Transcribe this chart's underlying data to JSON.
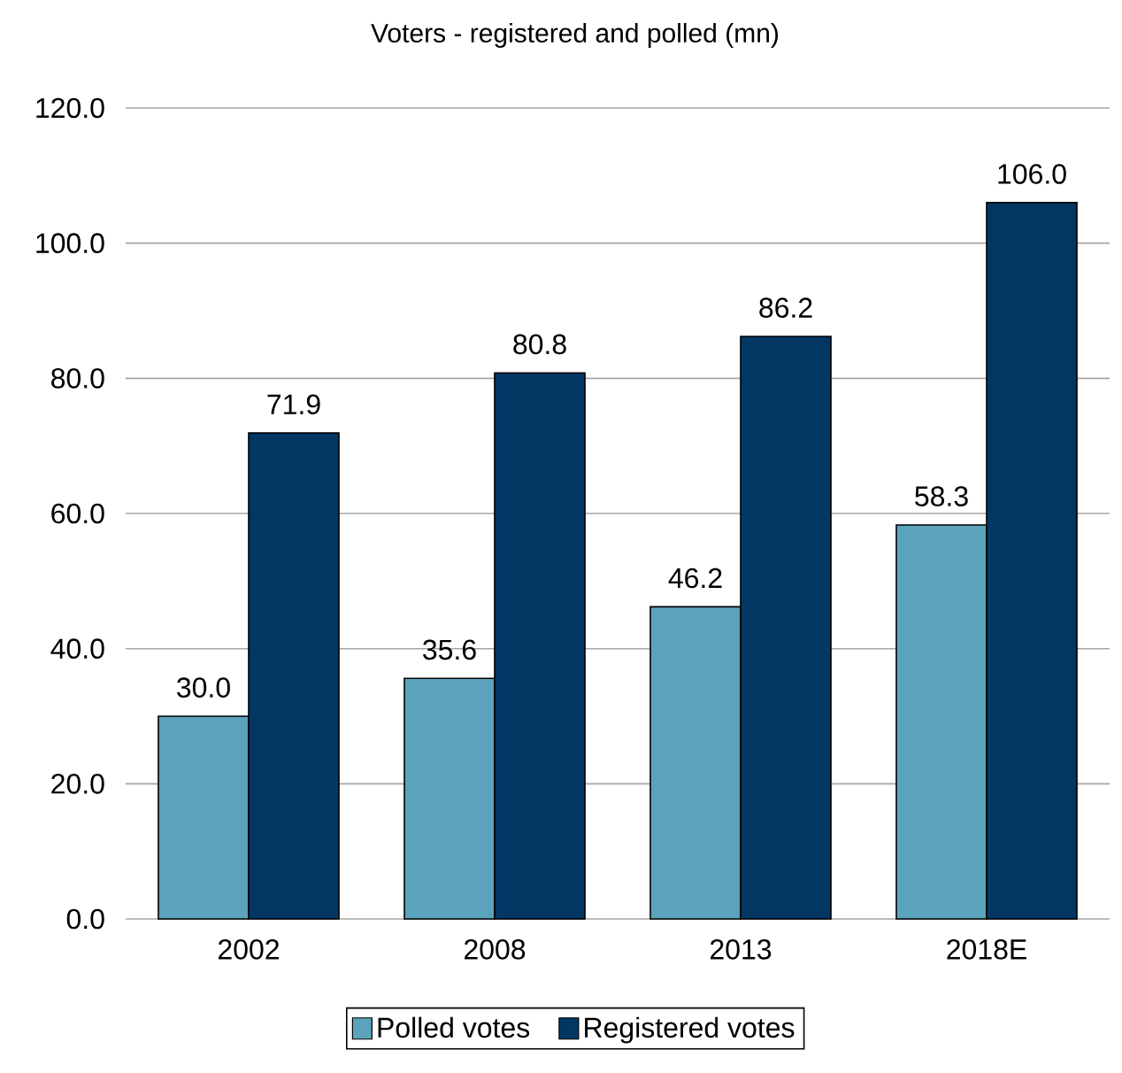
{
  "chart_data": {
    "type": "bar",
    "title": "Voters - registered and polled (mn)",
    "categories": [
      "2002",
      "2008",
      "2013",
      "2018E"
    ],
    "series": [
      {
        "name": "Polled votes",
        "color": "#5ba3bc",
        "values": [
          30.0,
          35.6,
          46.2,
          58.3
        ],
        "value_labels": [
          "30.0",
          "35.6",
          "46.2",
          "58.3"
        ]
      },
      {
        "name": "Registered votes",
        "color": "#023764",
        "values": [
          71.9,
          80.8,
          86.2,
          106.0
        ],
        "value_labels": [
          "71.9",
          "80.8",
          "86.2",
          "106.0"
        ]
      }
    ],
    "ylim": [
      0,
      120
    ],
    "yticks": [
      {
        "value": 0,
        "label": "0.0"
      },
      {
        "value": 20,
        "label": "20.0"
      },
      {
        "value": 40,
        "label": "40.0"
      },
      {
        "value": 60,
        "label": "60.0"
      },
      {
        "value": 80,
        "label": "80.0"
      },
      {
        "value": 100,
        "label": "100.0"
      },
      {
        "value": 120,
        "label": "120.0"
      }
    ],
    "grid": "y",
    "legend": "bottom"
  }
}
